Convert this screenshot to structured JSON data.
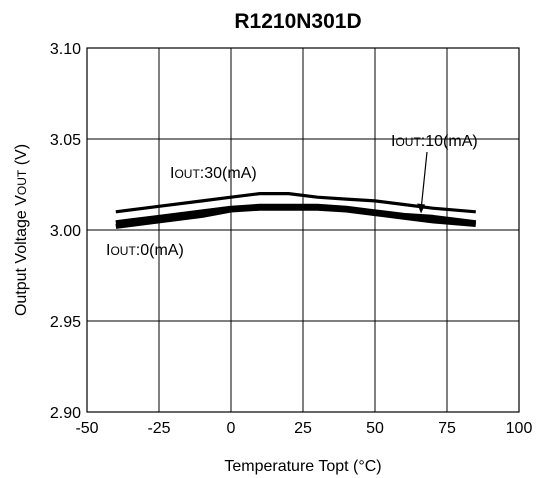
{
  "chart_data": {
    "type": "line",
    "title": "R1210N301D",
    "xlabel": "Temperature Topt (°C)",
    "ylabel": "Output Voltage VOUT (V)",
    "xlim": [
      -50,
      100
    ],
    "ylim": [
      2.9,
      3.1
    ],
    "x_ticks": [
      "-50",
      "-25",
      "0",
      "25",
      "50",
      "75",
      "100"
    ],
    "y_ticks": [
      "3.10",
      "3.05",
      "3.00",
      "2.95",
      "2.90"
    ],
    "grid": true,
    "series": [
      {
        "name": "IOUT:30(mA)",
        "x": [
          -40,
          -25,
          -10,
          0,
          10,
          20,
          30,
          40,
          50,
          60,
          70,
          85
        ],
        "y": [
          3.01,
          3.013,
          3.016,
          3.018,
          3.02,
          3.02,
          3.018,
          3.017,
          3.016,
          3.014,
          3.012,
          3.01
        ]
      },
      {
        "name": "IOUT:10(mA)",
        "x": [
          -40,
          -25,
          -10,
          0,
          10,
          20,
          30,
          40,
          50,
          60,
          70,
          85
        ],
        "y": [
          3.004,
          3.007,
          3.01,
          3.012,
          3.013,
          3.013,
          3.013,
          3.012,
          3.01,
          3.008,
          3.007,
          3.004
        ]
      },
      {
        "name": "IOUT:0(mA)",
        "x": [
          -40,
          -25,
          -10,
          0,
          10,
          20,
          30,
          40,
          50,
          60,
          70,
          85
        ],
        "y": [
          3.002,
          3.005,
          3.008,
          3.011,
          3.012,
          3.012,
          3.012,
          3.011,
          3.009,
          3.007,
          3.005,
          3.003
        ]
      }
    ],
    "annotations": [
      {
        "prefix": "I",
        "sub": "OUT",
        "suffix": ":30(mA)"
      },
      {
        "prefix": "I",
        "sub": "OUT",
        "suffix": ":10(mA)"
      },
      {
        "prefix": "I",
        "sub": "OUT",
        "suffix": ":0(mA)"
      }
    ],
    "colors": {
      "line": "#000000",
      "grid": "#000000",
      "background": "#ffffff"
    }
  }
}
